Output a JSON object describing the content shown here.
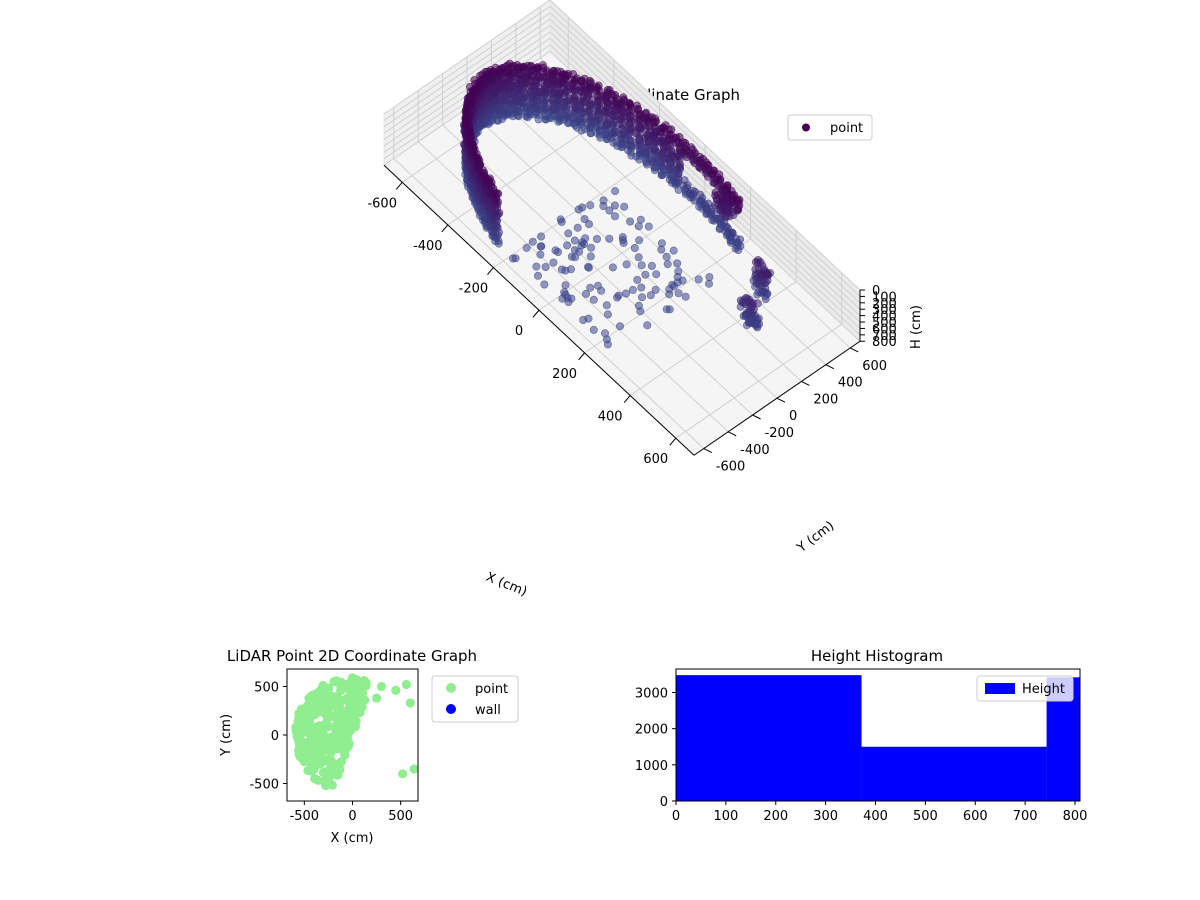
{
  "chart_data": [
    {
      "type": "scatter3d",
      "title": "LiDAR Point 3D Coordinate Graph",
      "xlabel": "X (cm)",
      "ylabel": "Y (cm)",
      "zlabel": "H (cm)",
      "xlim": [
        -680,
        680
      ],
      "ylim": [
        -680,
        680
      ],
      "zlim": [
        800,
        0
      ],
      "x_ticks": [
        -600,
        -400,
        -200,
        0,
        200,
        400,
        600
      ],
      "y_ticks": [
        -600,
        -400,
        -200,
        0,
        200,
        400,
        600
      ],
      "z_ticks": [
        0,
        100,
        200,
        300,
        400,
        500,
        600,
        700,
        800
      ],
      "grid": true,
      "legend_position": "upper-right",
      "series": [
        {
          "name": "point",
          "color": "#440154",
          "description_wall": {
            "radius_cm": 600,
            "angle_start_deg": 70,
            "angle_end_deg": 245,
            "h_min": 0,
            "h_max": 800
          },
          "clusters": [
            {
              "x": 150,
              "y": 560,
              "h_from": 100,
              "h_to": 380
            },
            {
              "x": 380,
              "y": 440,
              "h_from": 300,
              "h_to": 800
            },
            {
              "x": 430,
              "y": 250,
              "h_from": 430,
              "h_to": 800
            }
          ],
          "floor": {
            "x_from": -200,
            "x_to": 250,
            "y_from": -550,
            "y_to": 300,
            "h": 800
          }
        }
      ]
    },
    {
      "type": "scatter",
      "title": "LiDAR Point 2D Coordinate Graph",
      "xlabel": "X (cm)",
      "ylabel": "Y (cm)",
      "xlim": [
        -680,
        680
      ],
      "ylim": [
        -680,
        680
      ],
      "x_ticks": [
        -500,
        0,
        500
      ],
      "y_ticks": [
        -500,
        0,
        500
      ],
      "legend_position": "outside-right",
      "series": [
        {
          "name": "point",
          "color": "#90ee90",
          "description": "dense filled half-disc, radius 600, x <= ~200"
        },
        {
          "name": "wall",
          "color": "#0000ff",
          "points": []
        }
      ]
    },
    {
      "type": "histogram",
      "title": "Height Histogram",
      "xlim": [
        0,
        810
      ],
      "ylim": [
        0,
        3650
      ],
      "x_ticks": [
        0,
        100,
        200,
        300,
        400,
        500,
        600,
        700,
        800
      ],
      "y_ticks": [
        0,
        1000,
        2000,
        3000
      ],
      "legend_position": "upper-right",
      "series": [
        {
          "name": "Height",
          "color": "#0000ff",
          "bins": [
            {
              "from": 0,
              "to": 372,
              "value": 3480
            },
            {
              "from": 372,
              "to": 743,
              "value": 1500
            },
            {
              "from": 743,
              "to": 810,
              "value": 3420
            }
          ]
        }
      ]
    }
  ]
}
